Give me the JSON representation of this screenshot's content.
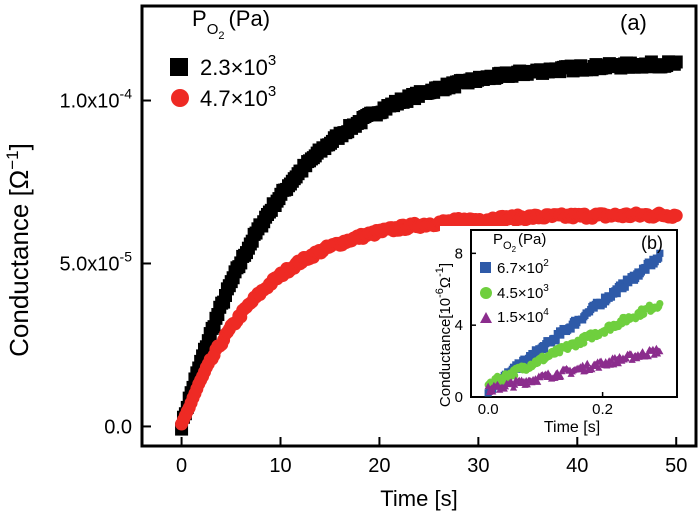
{
  "chart_data": [
    {
      "id": "main",
      "panel_label": "(a)",
      "type": "scatter",
      "xlabel": "Time [s]",
      "ylabel": "Conductance [Ω⁻¹]",
      "xlim": [
        -4,
        52
      ],
      "ylim": [
        -6e-06,
        0.000129
      ],
      "x_ticks": [
        0,
        10,
        20,
        30,
        40,
        50
      ],
      "x_tick_labels": [
        "0",
        "10",
        "20",
        "30",
        "40",
        "50"
      ],
      "y_ticks": [
        0,
        5e-05,
        0.0001
      ],
      "y_tick_labels": [
        "0.0",
        "5.0x10⁻⁵",
        "1.0x10⁻⁴"
      ],
      "legend": {
        "title": "PO2 (Pa)",
        "title_main": "P",
        "title_sub": "O",
        "title_subsub": "2",
        "title_tail": "(Pa)",
        "placement": "top-left"
      },
      "series": [
        {
          "name": "2.3×10³",
          "name_base": "2.3×10",
          "name_exp": "3",
          "color": "#000000",
          "marker": "square",
          "model": {
            "a": 0.000112,
            "tau": 10,
            "x_start": 0,
            "x_end": 50
          }
        },
        {
          "name": "4.7×10³",
          "name_base": "4.7×10",
          "name_exp": "3",
          "color": "#ee2a24",
          "marker": "circle",
          "model": {
            "a": 6.5e-05,
            "tau": 8,
            "x_start": 0,
            "x_end": 50
          }
        }
      ]
    },
    {
      "id": "inset",
      "panel_label": "(b)",
      "type": "scatter",
      "xlabel": "Time [s]",
      "ylabel": "Conductance[10⁻⁶Ω⁻¹]",
      "ylabel_main": "Conductance[10",
      "ylabel_exp": "-6",
      "ylabel_tail": "Ω",
      "ylabel_tail_exp": "-1",
      "ylabel_close": "]",
      "xlim": [
        -0.03,
        0.33
      ],
      "ylim": [
        0,
        9.3
      ],
      "x_ticks": [
        0.0,
        0.2
      ],
      "x_tick_labels": [
        "0.0",
        "0.2"
      ],
      "y_ticks": [
        0,
        4,
        8
      ],
      "y_tick_labels": [
        "0",
        "4",
        "8"
      ],
      "legend": {
        "title_main": "P",
        "title_sub": "O",
        "title_subsub": "2",
        "title_tail": "(Pa)",
        "placement": "top-left"
      },
      "series": [
        {
          "name": "6.7×10²",
          "name_base": "6.7×10",
          "name_exp": "2",
          "color": "#2e5aa8",
          "marker": "square",
          "model": {
            "y0": 0.4,
            "y1": 7.8,
            "x_start": 0.0,
            "x_end": 0.3
          }
        },
        {
          "name": "4.5×10³",
          "name_base": "4.5×10",
          "name_exp": "3",
          "color": "#6fcf3e",
          "marker": "circle",
          "model": {
            "y0": 0.7,
            "y1": 5.2,
            "x_start": 0.0,
            "x_end": 0.3
          }
        },
        {
          "name": "1.5×10⁴",
          "name_base": "1.5×10",
          "name_exp": "4",
          "color": "#8b2d8d",
          "marker": "triangle",
          "model": {
            "y0": 0.4,
            "y1": 2.6,
            "x_start": 0.0,
            "x_end": 0.3
          }
        }
      ]
    }
  ]
}
